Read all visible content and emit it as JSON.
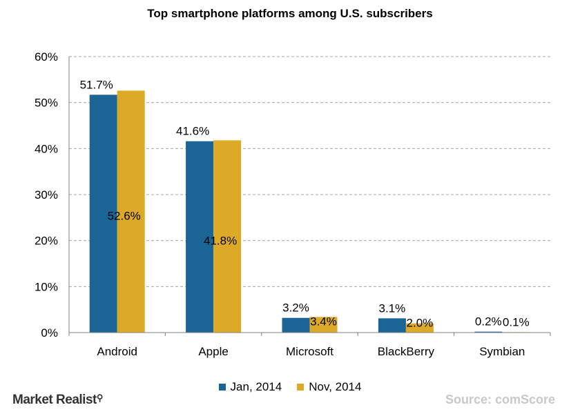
{
  "logo": {
    "text": "Market Realist",
    "icon": "magnifier-icon"
  },
  "source": "Source: comScore",
  "colors": {
    "series1": "#1b6496",
    "series2": "#dcaa26",
    "grid": "#a6a6a6",
    "axis": "#808080"
  },
  "chart_data": {
    "type": "bar",
    "title": "Top smartphone platforms among U.S. subscribers",
    "xlabel": "",
    "ylabel": "",
    "categories": [
      "Android",
      "Apple",
      "Microsoft",
      "BlackBerry",
      "Symbian"
    ],
    "series": [
      {
        "name": "Jan, 2014",
        "values": [
          51.7,
          41.6,
          3.2,
          3.1,
          0.2
        ],
        "labels": [
          "51.7%",
          "41.6%",
          "3.2%",
          "3.1%",
          "0.2%"
        ]
      },
      {
        "name": "Nov, 2014",
        "values": [
          52.6,
          41.8,
          3.4,
          2.0,
          0.1
        ],
        "labels": [
          "52.6%",
          "41.8%",
          "3.4%",
          "2.0%",
          "0.1%"
        ]
      }
    ],
    "ylim": [
      0,
      60
    ],
    "yticks": [
      "0%",
      "10%",
      "20%",
      "30%",
      "40%",
      "50%",
      "60%"
    ],
    "grid": true,
    "legend": "bottom"
  }
}
